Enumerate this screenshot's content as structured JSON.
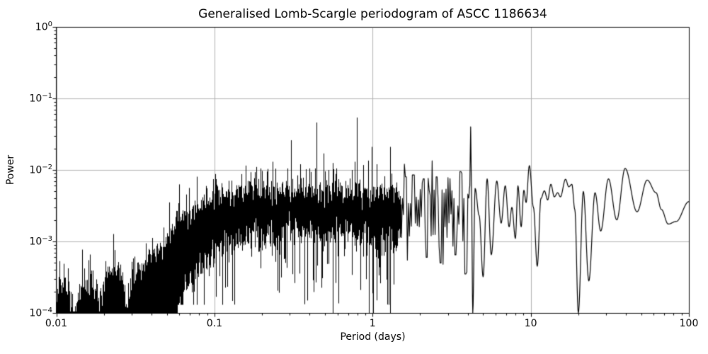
{
  "figure": {
    "title": "Generalised Lomb-Scargle periodogram of ASCC 1186634",
    "xlabel": "Period (days)",
    "ylabel": "Power"
  },
  "chart_data": {
    "type": "line",
    "title": "Generalised Lomb-Scargle periodogram of ASCC 1186634",
    "xlabel": "Period (days)",
    "ylabel": "Power",
    "xscale": "log",
    "yscale": "log",
    "xlim": [
      0.01,
      100
    ],
    "ylim": [
      0.0001,
      1
    ],
    "grid": true,
    "legend": false,
    "line_color": "#000000",
    "grid_color": "#b0b0b0",
    "background_color": "#ffffff",
    "x_tick_labels": [
      "0.01",
      "0.1",
      "1",
      "10",
      "100"
    ],
    "x_tick_values": [
      0.01,
      0.1,
      1,
      10,
      100
    ],
    "y_tick_exponents": [
      0,
      -1,
      -2,
      -3,
      -4
    ],
    "description": "Dense unresolved periodogram noise band from 0.01 to ~1.5 days, zigzag oscillations 1.5-4 days, resolved smooth lobes 4.3-100 days. Strongest peaks near 0.8 d (0.053), 0.44 d (0.046), 4.2 d (0.040).",
    "noise_band": {
      "dense_until": 1.5,
      "solid_bottom_until": 0.058,
      "hi": [
        [
          0.01,
          0.00018
        ],
        [
          0.0113,
          0.0003
        ],
        [
          0.012,
          0.00016
        ],
        [
          0.01245,
          9.5e-05
        ],
        [
          0.0133,
          9.5e-05
        ],
        [
          0.014,
          0.00021
        ],
        [
          0.016,
          0.00025
        ],
        [
          0.018,
          0.00023
        ],
        [
          0.01865,
          0.000105
        ],
        [
          0.0194,
          0.00016
        ],
        [
          0.021,
          0.00036
        ],
        [
          0.025,
          0.00048
        ],
        [
          0.0262,
          0.00028
        ],
        [
          0.0273,
          0.000135
        ],
        [
          0.029,
          0.00022
        ],
        [
          0.032,
          0.00034
        ],
        [
          0.036,
          0.00052
        ],
        [
          0.04,
          0.00065
        ],
        [
          0.045,
          0.00085
        ],
        [
          0.05,
          0.00115
        ],
        [
          0.055,
          0.0015
        ],
        [
          0.06,
          0.0019
        ],
        [
          0.07,
          0.0027
        ],
        [
          0.08,
          0.0033
        ],
        [
          0.09,
          0.0039
        ],
        [
          0.1,
          0.0044
        ],
        [
          0.12,
          0.0049
        ],
        [
          0.15,
          0.0052
        ],
        [
          0.2,
          0.0053
        ],
        [
          0.3,
          0.0054
        ],
        [
          0.45,
          0.0054
        ],
        [
          0.7,
          0.0053
        ],
        [
          0.95,
          0.005
        ],
        [
          1.5,
          0.0047
        ]
      ],
      "lo": [
        [
          0.058,
          0.000115
        ],
        [
          0.065,
          0.00018
        ],
        [
          0.075,
          0.0003
        ],
        [
          0.09,
          0.0005
        ],
        [
          0.1,
          0.00065
        ],
        [
          0.13,
          0.0009
        ],
        [
          0.2,
          0.00115
        ],
        [
          0.3,
          0.00125
        ],
        [
          0.5,
          0.0013
        ],
        [
          0.7,
          0.00125
        ],
        [
          0.95,
          0.00115
        ],
        [
          1.5,
          0.00105
        ]
      ]
    },
    "major_peaks": [
      [
        0.157,
        0.0115
      ],
      [
        0.184,
        0.011
      ],
      [
        0.233,
        0.013
      ],
      [
        0.305,
        0.026
      ],
      [
        0.35,
        0.012
      ],
      [
        0.44,
        0.046
      ],
      [
        0.49,
        0.017
      ],
      [
        0.56,
        0.0125
      ],
      [
        0.74,
        0.01
      ],
      [
        0.77,
        0.013
      ],
      [
        0.795,
        0.054
      ],
      [
        0.875,
        0.0117
      ],
      [
        0.94,
        0.0135
      ],
      [
        0.99,
        0.021
      ],
      [
        1.06,
        0.012
      ],
      [
        1.29,
        0.021
      ]
    ],
    "deep_nulls": [
      [
        0.56,
        0.0001
      ],
      [
        0.95,
        0.0001
      ],
      [
        1.005,
        0.0001
      ],
      [
        1.29,
        0.0001
      ]
    ],
    "zigzag_region": {
      "from": 1.5,
      "to": 4.05,
      "hi_level": 0.0046,
      "lo_level": 0.00125,
      "spikes": [
        [
          1.62,
          0.008
        ],
        [
          1.83,
          0.0085
        ],
        [
          2.1,
          0.0075
        ],
        [
          2.55,
          0.008
        ],
        [
          3.0,
          0.0078
        ],
        [
          3.58,
          0.0095
        ]
      ],
      "dips": [
        [
          2.2,
          0.0006
        ],
        [
          2.7,
          0.0005
        ],
        [
          3.35,
          0.00065
        ],
        [
          3.85,
          0.00035
        ]
      ]
    },
    "resolved_tail": [
      [
        4.05,
        0.004
      ],
      [
        4.12,
        0.006
      ],
      [
        4.17,
        0.04
      ],
      [
        4.22,
        0.005
      ],
      [
        4.3,
        0.0001
      ],
      [
        4.45,
        0.0055
      ],
      [
        4.72,
        0.0023
      ],
      [
        5.0,
        0.00032
      ],
      [
        5.3,
        0.0075
      ],
      [
        5.63,
        0.00065
      ],
      [
        6.1,
        0.007
      ],
      [
        6.5,
        0.0018
      ],
      [
        6.9,
        0.006
      ],
      [
        7.3,
        0.0016
      ],
      [
        7.6,
        0.003
      ],
      [
        8.0,
        0.0011
      ],
      [
        8.3,
        0.006
      ],
      [
        8.7,
        0.0016
      ],
      [
        9.05,
        0.0052
      ],
      [
        9.35,
        0.0035
      ],
      [
        9.8,
        0.0115
      ],
      [
        10.4,
        0.003
      ],
      [
        11.0,
        0.00045
      ],
      [
        11.6,
        0.004
      ],
      [
        12.2,
        0.0051
      ],
      [
        12.8,
        0.0038
      ],
      [
        13.4,
        0.0063
      ],
      [
        14.1,
        0.0042
      ],
      [
        14.8,
        0.0048
      ],
      [
        15.4,
        0.0042
      ],
      [
        16.6,
        0.0074
      ],
      [
        17.4,
        0.0058
      ],
      [
        18.2,
        0.0063
      ],
      [
        19.0,
        0.0028
      ],
      [
        20.0,
        0.0001
      ],
      [
        21.5,
        0.005
      ],
      [
        23.3,
        0.00028
      ],
      [
        25.5,
        0.0048
      ],
      [
        27.7,
        0.0014
      ],
      [
        31.0,
        0.0075
      ],
      [
        35.0,
        0.002
      ],
      [
        39.5,
        0.0105
      ],
      [
        47.0,
        0.0026
      ],
      [
        54.5,
        0.0072
      ],
      [
        62.0,
        0.0048
      ],
      [
        67.0,
        0.0028
      ],
      [
        74.0,
        0.00175
      ],
      [
        83.0,
        0.0019
      ],
      [
        100.0,
        0.0036
      ]
    ]
  }
}
